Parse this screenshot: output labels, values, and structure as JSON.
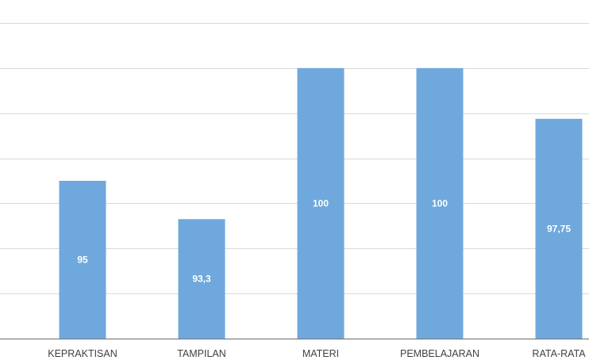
{
  "chart_data": {
    "type": "bar",
    "categories": [
      "KEPRAKTISAN",
      "TAMPILAN",
      "MATERI",
      "PEMBELAJARAN",
      "RATA-RATA"
    ],
    "values": [
      95,
      93.3,
      100,
      100,
      97.75
    ],
    "data_labels": [
      "95",
      "93,3",
      "100",
      "100",
      "97,75"
    ],
    "title": "",
    "xlabel": "",
    "ylabel": "",
    "ylim": [
      88,
      102
    ],
    "grid": true,
    "legend": "none",
    "bar_color": "#6FA8DC",
    "grid_color": "#D9D9D9",
    "axis_color": "#808080",
    "label_color": "#404040"
  }
}
